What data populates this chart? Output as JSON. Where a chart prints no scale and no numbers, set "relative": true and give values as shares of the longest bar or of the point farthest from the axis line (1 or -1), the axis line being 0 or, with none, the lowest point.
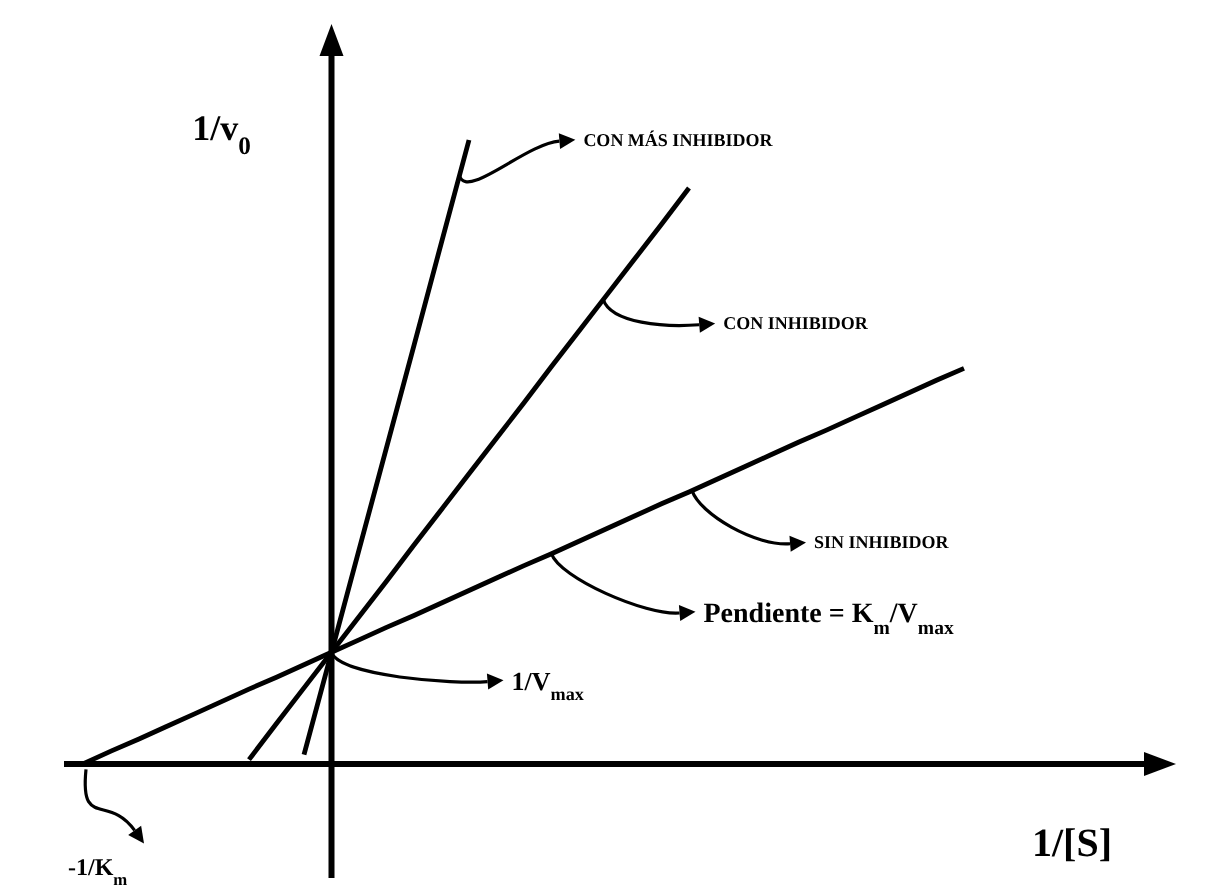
{
  "chart_data": {
    "type": "line",
    "relative": true,
    "xlabel": "1/[S]",
    "ylabel": "1/v$_{0}$",
    "categories": [
      null,
      null,
      null,
      null,
      null,
      null,
      null,
      null,
      null,
      null,
      null,
      null,
      null,
      null,
      null,
      null,
      null,
      null,
      null,
      null,
      null,
      null,
      null,
      null,
      null,
      null,
      null,
      null,
      null,
      null,
      null,
      null,
      null
    ],
    "series": [
      {
        "name": "SIN INHIBIDOR",
        "color": "#000000",
        "values": [
          0.001,
          0.021,
          0.04,
          0.06,
          0.08,
          0.1,
          0.12,
          0.139,
          0.159,
          0.179,
          0.199,
          0.219,
          0.238,
          0.258,
          0.278,
          0.298,
          0.318,
          0.337,
          0.357,
          0.377,
          0.397,
          0.417,
          0.436,
          0.456,
          0.476,
          0.496,
          0.516,
          0.535,
          0.555,
          0.575,
          0.595,
          0.615,
          0.634
        ]
      },
      {
        "name": "CON INHIBIDOR",
        "color": "#000000",
        "values": [
          null,
          null,
          null,
          null,
          null,
          null,
          0.007,
          0.065,
          0.122,
          0.179,
          0.236,
          0.293,
          0.351,
          0.408,
          0.465,
          0.522,
          0.579,
          0.637,
          0.694,
          0.751,
          0.808,
          0.865,
          0.923,
          null,
          null,
          null,
          null,
          null,
          null,
          null,
          null,
          null,
          null
        ]
      },
      {
        "name": "CON MÁS INHIBIDOR",
        "color": "#000000",
        "values": [
          null,
          null,
          null,
          null,
          null,
          null,
          null,
          null,
          0.015,
          0.179,
          0.343,
          0.507,
          0.671,
          0.836,
          1,
          null,
          null,
          null,
          null,
          null,
          null,
          null,
          null,
          null,
          null,
          null,
          null,
          null,
          null,
          null,
          null,
          null,
          null
        ]
      }
    ],
    "legend": "right",
    "annotations": [
      "Pendiente = K$_{m}$/V$_{max}$",
      "1/V$_{max}$",
      "-1/K$_{m}$"
    ]
  }
}
